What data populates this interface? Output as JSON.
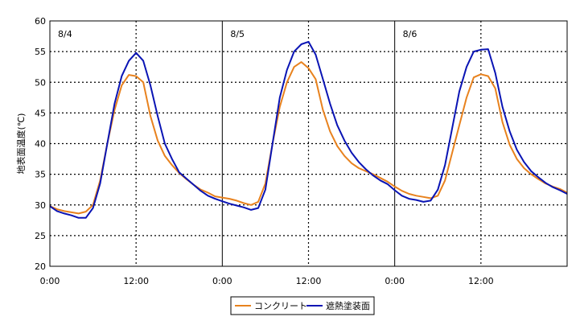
{
  "chart_data": {
    "type": "line",
    "title": "",
    "xlabel": "",
    "ylabel": "地表面温度(℃)",
    "ylim": [
      20,
      60
    ],
    "xlim_hours": [
      0,
      72
    ],
    "x_unit": "hours from 8/4 0:00",
    "y_ticks": [
      "20",
      "25",
      "30",
      "35",
      "40",
      "45",
      "50",
      "55",
      "60"
    ],
    "x_ticks": [
      {
        "hour": 0,
        "label": "0:00"
      },
      {
        "hour": 12,
        "label": "12:00"
      },
      {
        "hour": 24,
        "label": "0:00"
      },
      {
        "hour": 36,
        "label": "12:00"
      },
      {
        "hour": 48,
        "label": "0:00"
      },
      {
        "hour": 60,
        "label": "12:00"
      }
    ],
    "day_labels": [
      {
        "hour": 0,
        "label": "8/4"
      },
      {
        "hour": 24,
        "label": "8/5"
      },
      {
        "hour": 48,
        "label": "8/6"
      }
    ],
    "grid": true,
    "legend_position": "bottom-center",
    "series": [
      {
        "name": "コンクリート",
        "color": "#e8821e",
        "x": [
          0,
          1,
          2,
          3,
          4,
          5,
          6,
          7,
          8,
          9,
          10,
          11,
          12,
          13,
          14,
          15,
          16,
          17,
          18,
          19,
          20,
          21,
          22,
          23,
          24,
          25,
          26,
          27,
          28,
          29,
          30,
          31,
          32,
          33,
          34,
          35,
          36,
          37,
          38,
          39,
          40,
          41,
          42,
          43,
          44,
          45,
          46,
          47,
          48,
          49,
          50,
          51,
          52,
          53,
          54,
          55,
          56,
          57,
          58,
          59,
          60,
          61,
          62,
          63,
          64,
          65,
          66,
          67,
          68,
          69,
          70,
          71,
          72
        ],
        "y": [
          29.8,
          29.3,
          29.0,
          28.8,
          28.6,
          28.9,
          30.0,
          34.0,
          40.0,
          45.5,
          49.5,
          51.2,
          51.0,
          50.0,
          44.5,
          40.5,
          38.0,
          36.5,
          35.2,
          34.2,
          33.3,
          32.5,
          32.0,
          31.4,
          31.2,
          31.0,
          30.7,
          30.3,
          30.0,
          30.5,
          33.5,
          40.0,
          46.0,
          50.0,
          52.5,
          53.3,
          52.3,
          50.5,
          45.5,
          42.0,
          39.6,
          38.0,
          36.8,
          36.0,
          35.5,
          35.0,
          34.4,
          33.8,
          33.0,
          32.3,
          31.8,
          31.5,
          31.3,
          31.1,
          31.5,
          34.0,
          38.5,
          43.0,
          47.5,
          50.8,
          51.3,
          51.0,
          49.0,
          43.5,
          39.8,
          37.5,
          36.0,
          35.0,
          34.2,
          33.5,
          33.0,
          32.6,
          32.0
        ]
      },
      {
        "name": "遮熱塗装面",
        "color": "#0a14b4",
        "x": [
          0,
          1,
          2,
          3,
          4,
          5,
          6,
          7,
          8,
          9,
          10,
          11,
          12,
          13,
          14,
          15,
          16,
          17,
          18,
          19,
          20,
          21,
          22,
          23,
          24,
          25,
          26,
          27,
          28,
          29,
          30,
          31,
          32,
          33,
          34,
          35,
          36,
          37,
          38,
          39,
          40,
          41,
          42,
          43,
          44,
          45,
          46,
          47,
          48,
          49,
          50,
          51,
          52,
          53,
          54,
          55,
          56,
          57,
          58,
          59,
          60,
          61,
          62,
          63,
          64,
          65,
          66,
          67,
          68,
          69,
          70,
          71,
          72
        ],
        "y": [
          29.8,
          29.0,
          28.6,
          28.3,
          27.9,
          27.9,
          29.5,
          33.5,
          40.0,
          46.5,
          51.0,
          53.5,
          54.8,
          53.5,
          49.5,
          44.5,
          40.0,
          37.5,
          35.3,
          34.3,
          33.3,
          32.3,
          31.5,
          31.0,
          30.6,
          30.2,
          29.9,
          29.6,
          29.2,
          29.5,
          32.5,
          40.0,
          47.5,
          52.0,
          55.0,
          56.2,
          56.6,
          54.5,
          50.5,
          46.5,
          43.0,
          40.5,
          38.5,
          37.0,
          35.8,
          34.8,
          34.0,
          33.4,
          32.4,
          31.5,
          31.0,
          30.8,
          30.5,
          30.7,
          32.5,
          36.5,
          42.5,
          48.5,
          52.5,
          55.0,
          55.3,
          55.4,
          51.5,
          46.0,
          42.0,
          39.0,
          37.0,
          35.5,
          34.5,
          33.6,
          32.9,
          32.4,
          31.8
        ]
      }
    ]
  }
}
